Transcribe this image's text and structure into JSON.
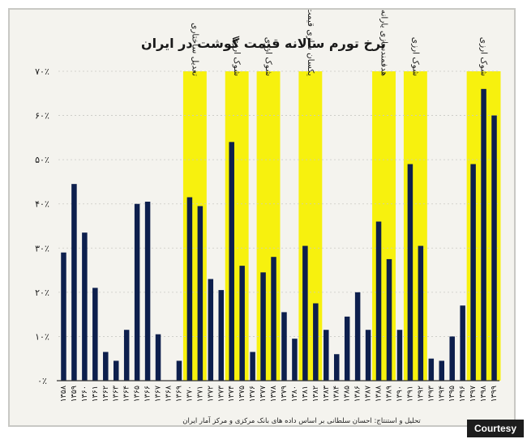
{
  "chart_data": {
    "type": "bar",
    "title": "نرخ تورم سالانه قیمت گوشت در ایران",
    "source": "تحلیل و استنتاج: احسان سلطانی بر اساس داده های بانک مرکزی و مرکز آمار ایران",
    "ylim": [
      0,
      70
    ],
    "y_ticks": [
      "٠٪",
      "١٠٪",
      "٢٠٪",
      "٣٠٪",
      "۴٠٪",
      "۵٠٪",
      "۶٠٪",
      "٧٠٪"
    ],
    "categories": [
      "١٣۵٨",
      "١٣۵٩",
      "١٣۶٠",
      "١٣۶١",
      "١٣۶٢",
      "١٣۶٣",
      "١٣۶۴",
      "١٣۶۵",
      "١٣۶۶",
      "١٣۶٧",
      "١٣۶٨",
      "١٣۶٩",
      "١٣٧٠",
      "١٣٧١",
      "١٣٧٢",
      "١٣٧٣",
      "١٣٧۴",
      "١٣٧۵",
      "١٣٧۶",
      "١٣٧٧",
      "١٣٧٨",
      "١٣٧٩",
      "١٣٨٠",
      "١٣٨١",
      "١٣٨٢",
      "١٣٨٣",
      "١٣٨۴",
      "١٣٨۵",
      "١٣٨۶",
      "١٣٨٧",
      "١٣٨٨",
      "١٣٨٩",
      "١٣٩٠",
      "١٣٩١",
      "١٣٩٢",
      "١٣٩٣",
      "١٣٩۴",
      "١٣٩۵",
      "١٣٩۶",
      "١٣٩٧",
      "١٣٩٨",
      "١٣٩٩"
    ],
    "values": [
      29,
      44.5,
      33.5,
      21,
      6.5,
      4.5,
      11.5,
      40,
      40.5,
      10.5,
      0,
      4.5,
      41.5,
      39.5,
      23,
      20.5,
      54,
      26,
      6.5,
      24.5,
      28,
      15.5,
      9.5,
      30.5,
      17.5,
      11.5,
      6,
      14.5,
      20,
      11.5,
      36,
      27.5,
      11.5,
      49,
      30.5,
      5,
      4.5,
      10,
      17,
      49,
      66,
      60
    ],
    "highlights": [
      {
        "label": "تعدیل ساختاری",
        "start": 12,
        "end": 13
      },
      {
        "label": "شوک ارزی",
        "start": 16,
        "end": 17
      },
      {
        "label": "شوک ارزی",
        "start": 19,
        "end": 20
      },
      {
        "label": "یکسان سازی قیمت ارز",
        "start": 23,
        "end": 24
      },
      {
        "label": "هدفمندسازی یارانه‌ها",
        "start": 30,
        "end": 31
      },
      {
        "label": "شوک ارزی",
        "start": 33,
        "end": 34
      },
      {
        "label": "شوک ارزی",
        "start": 39,
        "end": 41
      }
    ],
    "colors": {
      "bar": "#0d1f4d",
      "highlight": "#f7f10e",
      "axis": "#333333",
      "grid": "#c9c9c4",
      "text": "#1a1a1a"
    }
  },
  "badge": "Courtesy"
}
